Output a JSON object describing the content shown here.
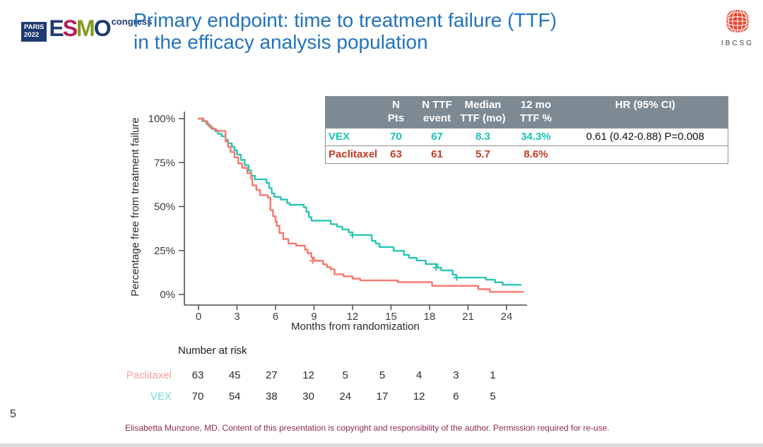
{
  "slide": {
    "title_line1": "Primary endpoint: time to treatment failure (TTF)",
    "title_line2": "in the efficacy analysis population",
    "title_color": "#2173bc",
    "page_number": "5",
    "footer": "Elisabetta Munzone, MD. Content of this presentation is copyright and responsibility of the author. Permission required for re-use.",
    "footer_color": "#8e2a55"
  },
  "logos": {
    "esmo": {
      "city": "PARIS",
      "year": "2022",
      "letters": [
        {
          "ch": "E",
          "color": "#1f3a70"
        },
        {
          "ch": "S",
          "color": "#b01b5c"
        },
        {
          "ch": "M",
          "color": "#7f9b1d"
        },
        {
          "ch": "O",
          "color": "#1f3a70"
        }
      ],
      "suffix": "congress"
    },
    "ibcsg": {
      "label": "IBCSG",
      "globe_color": "#e8432d"
    }
  },
  "results_table": {
    "header_bg": "#7d8a94",
    "columns": [
      "",
      "N\nPts",
      "N TTF\nevent",
      "Median\nTTF (mo)",
      "12 mo\nTTF %",
      "HR (95% CI)"
    ],
    "rows": [
      {
        "name": "VEX",
        "color": "#17c3b2",
        "n_pts": "70",
        "n_ttf_event": "67",
        "median_ttf": "8.3",
        "ttf_12mo": "34.3%",
        "hr": "0.61 (0.42-0.88) P=0.008"
      },
      {
        "name": "Paclitaxel",
        "color": "#c23b28",
        "n_pts": "63",
        "n_ttf_event": "61",
        "median_ttf": "5.7",
        "ttf_12mo": "8.6%",
        "hr": ""
      }
    ]
  },
  "chart_data": {
    "type": "line",
    "subtype": "kaplan-meier-step",
    "title": "",
    "xlabel": "Months from randomization",
    "ylabel": "Percentage free from treatment failure",
    "xlim": [
      0,
      25.5
    ],
    "ylim": [
      0,
      100
    ],
    "grid": false,
    "x_ticks": [
      0,
      3,
      6,
      9,
      12,
      15,
      18,
      21,
      24
    ],
    "y_ticks": [
      {
        "label": "0%",
        "value": 0
      },
      {
        "label": "25%",
        "value": 25
      },
      {
        "label": "50%",
        "value": 50
      },
      {
        "label": "75%",
        "value": 75
      },
      {
        "label": "100%",
        "value": 100
      }
    ],
    "series": [
      {
        "name": "VEX",
        "color": "#2cc5b4",
        "end_x": 25.1,
        "points": [
          [
            0,
            100
          ],
          [
            0.3,
            98.6
          ],
          [
            0.6,
            97.1
          ],
          [
            0.8,
            95.7
          ],
          [
            1.0,
            94.3
          ],
          [
            1.3,
            92.9
          ],
          [
            1.5,
            91.4
          ],
          [
            1.8,
            90.0
          ],
          [
            2.1,
            88.0
          ],
          [
            2.3,
            86.0
          ],
          [
            2.6,
            84.0
          ],
          [
            2.8,
            82.0
          ],
          [
            3.0,
            79.5
          ],
          [
            3.3,
            76.5
          ],
          [
            3.6,
            73.5
          ],
          [
            3.9,
            70.5
          ],
          [
            4.1,
            67.5
          ],
          [
            4.4,
            65.5
          ],
          [
            5.3,
            63.5
          ],
          [
            5.5,
            60.5
          ],
          [
            5.7,
            57.5
          ],
          [
            5.9,
            55.5
          ],
          [
            6.4,
            54.0
          ],
          [
            6.9,
            52.0
          ],
          [
            7.1,
            51.0
          ],
          [
            8.2,
            49.5
          ],
          [
            8.4,
            47.0
          ],
          [
            8.6,
            44.0
          ],
          [
            8.8,
            42.0
          ],
          [
            10.3,
            40.0
          ],
          [
            10.8,
            38.5
          ],
          [
            11.2,
            37.0
          ],
          [
            11.7,
            35.3
          ],
          [
            12.0,
            33.8
          ],
          [
            13.5,
            30.5
          ],
          [
            13.8,
            29.0
          ],
          [
            14.1,
            27.0
          ],
          [
            15.2,
            24.8
          ],
          [
            16.0,
            22.5
          ],
          [
            16.4,
            20.8
          ],
          [
            17.0,
            19.3
          ],
          [
            17.7,
            17.3
          ],
          [
            18.6,
            15.3
          ],
          [
            18.9,
            13.7
          ],
          [
            19.8,
            11.2
          ],
          [
            20.1,
            9.6
          ],
          [
            22.4,
            8.4
          ],
          [
            23.1,
            6.9
          ],
          [
            23.7,
            5.5
          ]
        ],
        "censors": [
          [
            12.0,
            33.8
          ],
          [
            18.5,
            15.3
          ],
          [
            20.1,
            9.6
          ]
        ]
      },
      {
        "name": "Paclitaxel",
        "color": "#f8776e",
        "end_x": 25.3,
        "points": [
          [
            0,
            100
          ],
          [
            0.4,
            98.5
          ],
          [
            0.7,
            96.5
          ],
          [
            0.9,
            95.0
          ],
          [
            1.1,
            94.0
          ],
          [
            1.4,
            93.0
          ],
          [
            2.1,
            87.0
          ],
          [
            2.3,
            84.0
          ],
          [
            2.5,
            81.0
          ],
          [
            2.8,
            78.0
          ],
          [
            3.1,
            74.5
          ],
          [
            3.4,
            72.0
          ],
          [
            3.8,
            69.0
          ],
          [
            4.1,
            66.0
          ],
          [
            4.2,
            62.0
          ],
          [
            4.5,
            59.5
          ],
          [
            4.8,
            56.5
          ],
          [
            5.4,
            55.0
          ],
          [
            5.6,
            48.0
          ],
          [
            5.8,
            44.5
          ],
          [
            6.0,
            41.5
          ],
          [
            6.1,
            39.0
          ],
          [
            6.3,
            35.0
          ],
          [
            6.6,
            31.5
          ],
          [
            7.0,
            29.0
          ],
          [
            7.6,
            27.8
          ],
          [
            8.3,
            25.5
          ],
          [
            8.5,
            23.5
          ],
          [
            8.8,
            21.0
          ],
          [
            9.0,
            19.2
          ],
          [
            9.7,
            17.2
          ],
          [
            10.0,
            15.6
          ],
          [
            10.3,
            14.3
          ],
          [
            10.6,
            11.5
          ],
          [
            11.3,
            10.3
          ],
          [
            12.0,
            9.0
          ],
          [
            12.6,
            8.0
          ],
          [
            15.5,
            7.0
          ],
          [
            18.2,
            4.9
          ],
          [
            21.8,
            3.0
          ],
          [
            22.7,
            1.5
          ]
        ],
        "censors": [
          [
            8.9,
            19.2
          ]
        ]
      }
    ],
    "number_at_risk": {
      "label": "Number at risk",
      "times": [
        0,
        3,
        6,
        9,
        12,
        15,
        18,
        21,
        24
      ],
      "rows": [
        {
          "name": "Paclitaxel",
          "color": "#f7a09a",
          "values": [
            "63",
            "45",
            "27",
            "12",
            "5",
            "5",
            "4",
            "3",
            "1"
          ]
        },
        {
          "name": "VEX",
          "color": "#6fdbd0",
          "values": [
            "70",
            "54",
            "38",
            "30",
            "24",
            "17",
            "12",
            "6",
            "5"
          ]
        }
      ]
    }
  }
}
